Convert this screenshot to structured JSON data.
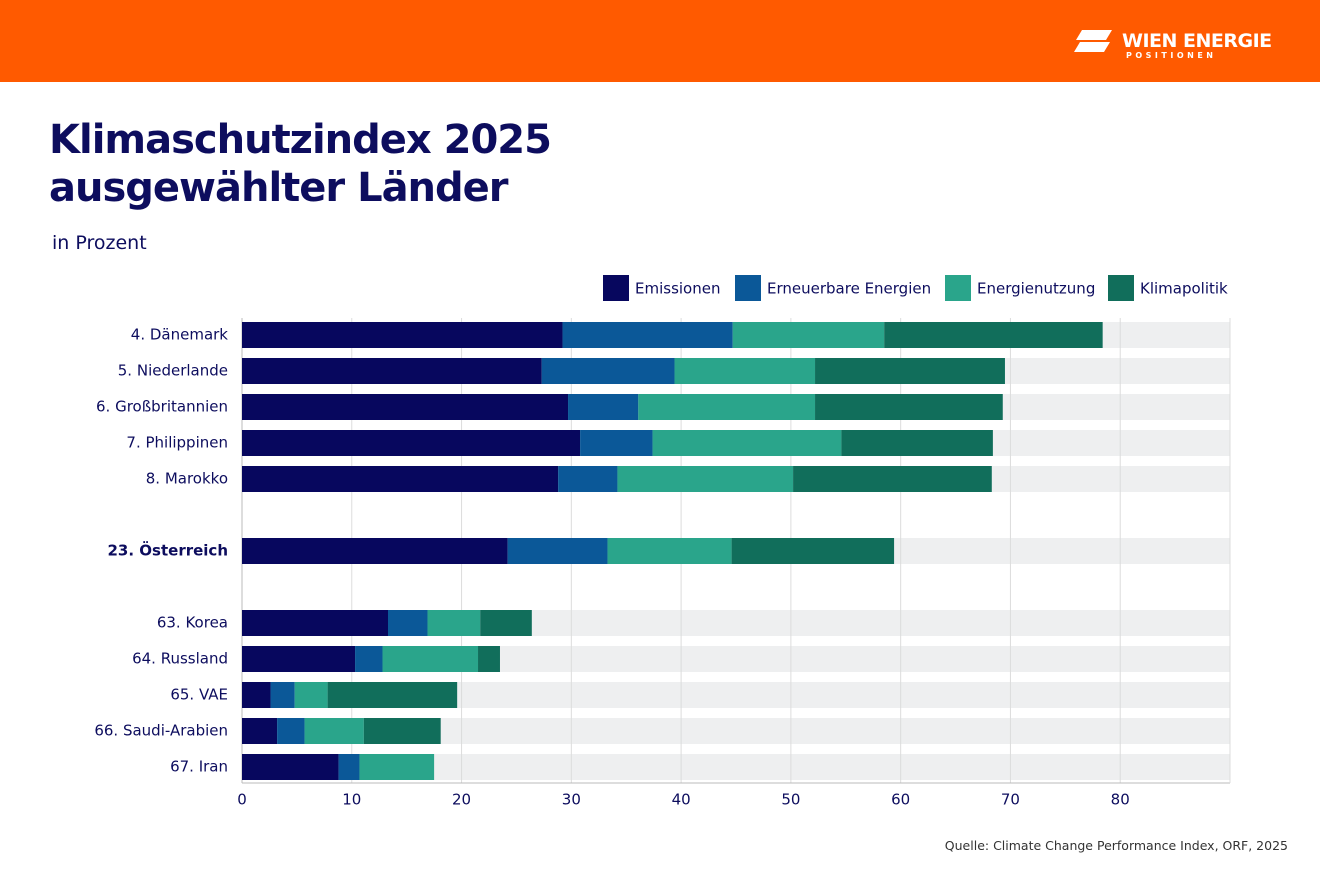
{
  "brand": {
    "name": "WIEN ENERGIE",
    "tagline": "POSITIONEN"
  },
  "chart_data": {
    "type": "stacked-bar-horizontal",
    "title": "Klimaschutzindex 2025 ausgewählter Länder",
    "subtitle": "in Prozent",
    "source": "Quelle: Climate Change Performance Index, ORF, 2025",
    "categories": [
      "4. Dänemark",
      "5. Niederlande",
      "6. Großbritannien",
      "7. Philippinen",
      "8. Marokko",
      null,
      "23. Österreich",
      null,
      "63. Korea",
      "64. Russland",
      "65. VAE",
      "66. Saudi-Arabien",
      "67. Iran"
    ],
    "series": [
      {
        "name": "Emissionen",
        "color": "#07075e",
        "values": [
          29.2,
          27.3,
          29.7,
          30.8,
          28.8,
          null,
          24.2,
          null,
          13.3,
          10.3,
          2.6,
          3.2,
          8.8
        ]
      },
      {
        "name": "Erneuerbare Energien",
        "color": "#0b5898",
        "values": [
          15.5,
          12.1,
          6.4,
          6.6,
          5.4,
          null,
          9.1,
          null,
          3.6,
          2.5,
          2.2,
          2.5,
          1.9
        ]
      },
      {
        "name": "Energienutzung",
        "color": "#2aa58b",
        "values": [
          13.8,
          12.8,
          16.1,
          17.2,
          16.0,
          null,
          11.3,
          null,
          4.8,
          8.7,
          3.0,
          5.4,
          6.8
        ]
      },
      {
        "name": "Klimapolitik",
        "color": "#116e5b",
        "values": [
          19.9,
          17.3,
          17.1,
          13.8,
          18.1,
          null,
          14.8,
          null,
          4.7,
          2.0,
          11.8,
          7.0,
          0
        ]
      }
    ],
    "xlim": [
      0,
      90
    ],
    "xticks": [
      0,
      10,
      20,
      30,
      40,
      50,
      60,
      70,
      80
    ],
    "grid": true,
    "legend": "top-right"
  }
}
